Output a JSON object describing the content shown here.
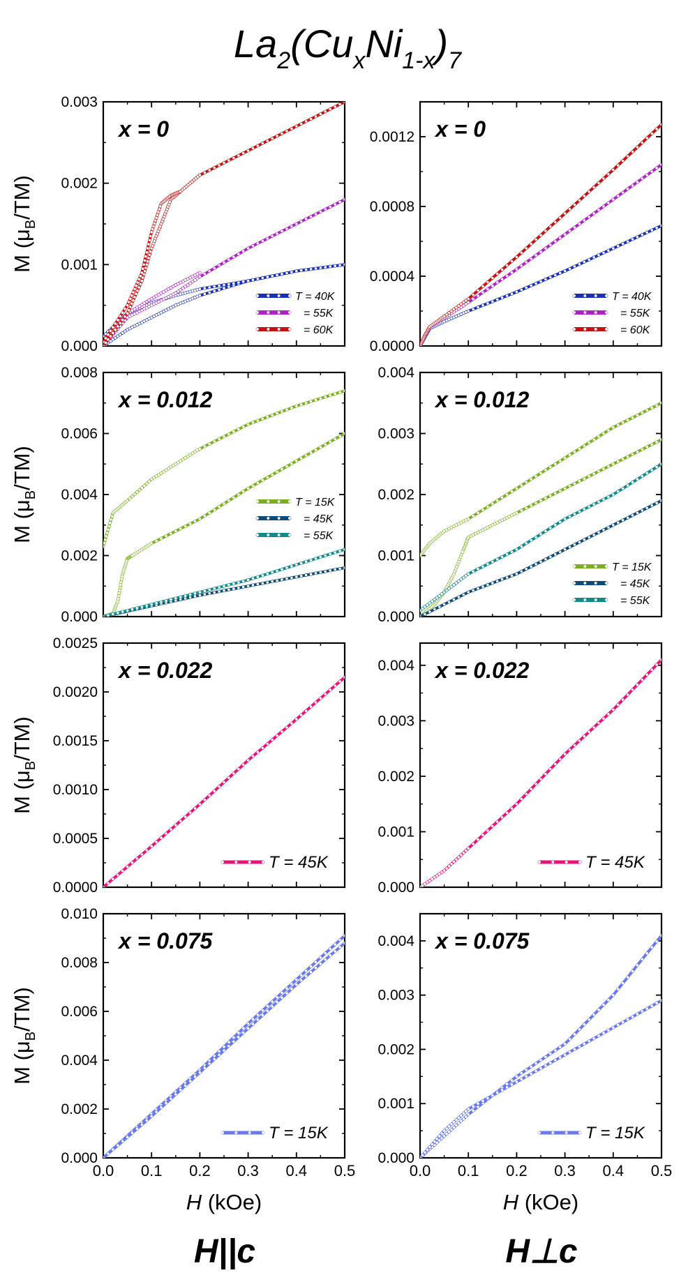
{
  "title": {
    "base": "La",
    "sub1": "2",
    "open": "(Cu",
    "sub2": "x",
    "mid": "Ni",
    "sub3": "1-x",
    "close": ")",
    "sub4": "7"
  },
  "y_label": {
    "pre": "M (μ",
    "sub": "B",
    "post": "/TM)"
  },
  "x_label": {
    "italic": "H",
    "unit": " (kOe)"
  },
  "column_labels": [
    "H||c",
    "H⊥c"
  ],
  "colors": {
    "blue": "#1830b8",
    "purple": "#b020c8",
    "red": "#c41212",
    "green": "#7ab020",
    "navy": "#0e4a7a",
    "teal": "#108a8a",
    "pink": "#e8137a",
    "periwinkle": "#6878ee"
  },
  "chart_data": [
    {
      "type": "line",
      "panel": "x0-par",
      "annotation": "x = 0",
      "xlim": [
        0,
        0.5
      ],
      "ylim": [
        0,
        0.003
      ],
      "xticks": [
        "0.0",
        "0.1",
        "0.2",
        "0.3",
        "0.4",
        "0.5"
      ],
      "yticks": [
        "0.000",
        "0.001",
        "0.002",
        "0.003"
      ],
      "legend_placement": "bottom-right",
      "series": [
        {
          "name": "T = 40K",
          "color": "#1830b8",
          "x": [
            0,
            0.05,
            0.1,
            0.15,
            0.2,
            0.3,
            0.4,
            0.5
          ],
          "y": [
            0,
            0.0002,
            0.00035,
            0.0005,
            0.00062,
            0.0008,
            0.00092,
            0.001
          ],
          "x2": [
            0,
            0.05,
            0.1,
            0.15,
            0.2,
            0.3,
            0.4,
            0.5
          ],
          "y2": [
            0.00012,
            0.0004,
            0.00053,
            0.00062,
            0.0007,
            0.0008,
            0.00092,
            0.001
          ]
        },
        {
          "name": "= 55K",
          "color": "#b020c8",
          "x": [
            0,
            0.05,
            0.1,
            0.15,
            0.2,
            0.3,
            0.4,
            0.5
          ],
          "y": [
            0,
            0.00035,
            0.0005,
            0.00065,
            0.00085,
            0.0012,
            0.0015,
            0.0018
          ],
          "x2": [
            0,
            0.05,
            0.1,
            0.15,
            0.2
          ],
          "y2": [
            5e-05,
            0.0004,
            0.00058,
            0.00075,
            0.0009
          ]
        },
        {
          "name": "= 60K",
          "color": "#c41212",
          "x": [
            0,
            0.05,
            0.08,
            0.1,
            0.12,
            0.14,
            0.16,
            0.2,
            0.3,
            0.4,
            0.5
          ],
          "y": [
            0,
            0.0004,
            0.0008,
            0.0012,
            0.0015,
            0.0018,
            0.0019,
            0.0021,
            0.0024,
            0.0027,
            0.003
          ],
          "x2": [
            0,
            0.05,
            0.08,
            0.1,
            0.12,
            0.14,
            0.16,
            0.2
          ],
          "y2": [
            5e-05,
            0.0005,
            0.0009,
            0.0014,
            0.00175,
            0.00185,
            0.0019,
            0.0021
          ]
        }
      ]
    },
    {
      "type": "line",
      "panel": "x0-perp",
      "annotation": "x = 0",
      "xlim": [
        0,
        0.5
      ],
      "ylim": [
        0,
        0.0014
      ],
      "xticks": [
        "0.0",
        "0.1",
        "0.2",
        "0.3",
        "0.4",
        "0.5"
      ],
      "yticks": [
        "0.0000",
        "0.0004",
        "0.0008",
        "0.0012"
      ],
      "ytick_values": [
        0,
        0.0004,
        0.0008,
        0.0012
      ],
      "legend_placement": "bottom-right",
      "series": [
        {
          "name": "T = 40K",
          "color": "#1830b8",
          "x": [
            0,
            0.01,
            0.02,
            0.05,
            0.1,
            0.2,
            0.3,
            0.4,
            0.5
          ],
          "y": [
            0,
            5e-05,
            0.0001,
            0.00014,
            0.0002,
            0.00031,
            0.00043,
            0.00056,
            0.00069
          ]
        },
        {
          "name": "= 55K",
          "color": "#b020c8",
          "x": [
            0,
            0.01,
            0.02,
            0.05,
            0.1,
            0.2,
            0.3,
            0.4,
            0.5
          ],
          "y": [
            0,
            6e-05,
            0.00011,
            0.00016,
            0.00025,
            0.00044,
            0.00064,
            0.00084,
            0.00104
          ]
        },
        {
          "name": "= 60K",
          "color": "#c41212",
          "x": [
            0,
            0.01,
            0.02,
            0.05,
            0.1,
            0.2,
            0.3,
            0.4,
            0.5
          ],
          "y": [
            0,
            6e-05,
            0.00011,
            0.00017,
            0.00027,
            0.00051,
            0.00076,
            0.00101,
            0.00127
          ]
        }
      ]
    },
    {
      "type": "line",
      "panel": "x0012-par",
      "annotation": "x = 0.012",
      "xlim": [
        0,
        0.5
      ],
      "ylim": [
        0,
        0.008
      ],
      "xticks": [
        "0.0",
        "0.1",
        "0.2",
        "0.3",
        "0.4",
        "0.5"
      ],
      "yticks": [
        "0.000",
        "0.002",
        "0.004",
        "0.006",
        "0.008"
      ],
      "legend_placement": "center-right",
      "series": [
        {
          "name": "T = 15K",
          "color": "#7ab020",
          "x": [
            0,
            0.02,
            0.05,
            0.1,
            0.15,
            0.2,
            0.3,
            0.4,
            0.5
          ],
          "y": [
            0.0023,
            0.0034,
            0.0038,
            0.0045,
            0.005,
            0.0055,
            0.0063,
            0.0069,
            0.0074
          ],
          "x2": [
            0,
            0.02,
            0.03,
            0.04,
            0.05,
            0.06,
            0.1,
            0.2,
            0.3,
            0.4,
            0.5
          ],
          "y2": [
            0,
            0.0001,
            0.0005,
            0.0014,
            0.0019,
            0.002,
            0.0024,
            0.0032,
            0.0042,
            0.0051,
            0.006
          ]
        },
        {
          "name": "= 45K",
          "color": "#0e4a7a",
          "x": [
            0,
            0.1,
            0.2,
            0.3,
            0.4,
            0.5
          ],
          "y": [
            0,
            0.00035,
            0.0007,
            0.001,
            0.0013,
            0.0016
          ]
        },
        {
          "name": "= 55K",
          "color": "#108a8a",
          "x": [
            0,
            0.1,
            0.2,
            0.3,
            0.4,
            0.5
          ],
          "y": [
            0,
            0.0004,
            0.0008,
            0.0012,
            0.0017,
            0.0022
          ]
        }
      ]
    },
    {
      "type": "line",
      "panel": "x0012-perp",
      "annotation": "x = 0.012",
      "xlim": [
        0,
        0.5
      ],
      "ylim": [
        0,
        0.004
      ],
      "xticks": [
        "0.0",
        "0.1",
        "0.2",
        "0.3",
        "0.4",
        "0.5"
      ],
      "yticks": [
        "0.000",
        "0.001",
        "0.002",
        "0.003",
        "0.004"
      ],
      "legend_placement": "bottom-right",
      "series": [
        {
          "name": "T = 15K",
          "color": "#7ab020",
          "x": [
            0,
            0.02,
            0.05,
            0.1,
            0.2,
            0.3,
            0.4,
            0.5
          ],
          "y": [
            0.001,
            0.0012,
            0.0014,
            0.0016,
            0.0021,
            0.0026,
            0.0031,
            0.0035
          ],
          "x2": [
            0,
            0.03,
            0.05,
            0.07,
            0.09,
            0.1,
            0.15,
            0.2,
            0.3,
            0.4,
            0.5
          ],
          "y2": [
            0,
            0.0002,
            0.0004,
            0.0007,
            0.0011,
            0.0013,
            0.0015,
            0.0017,
            0.0021,
            0.0025,
            0.0029
          ]
        },
        {
          "name": "= 45K",
          "color": "#0e4a7a",
          "x": [
            0,
            0.1,
            0.2,
            0.3,
            0.4,
            0.5
          ],
          "y": [
            0,
            0.0004,
            0.0007,
            0.0011,
            0.0015,
            0.0019
          ]
        },
        {
          "name": "= 55K",
          "color": "#108a8a",
          "x": [
            0,
            0.05,
            0.1,
            0.2,
            0.3,
            0.4,
            0.5
          ],
          "y": [
            0.0001,
            0.0004,
            0.0007,
            0.0011,
            0.0016,
            0.002,
            0.0025
          ]
        }
      ]
    },
    {
      "type": "line",
      "panel": "x0022-par",
      "annotation": "x = 0.022",
      "xlim": [
        0,
        0.5
      ],
      "ylim": [
        0,
        0.0025
      ],
      "xticks": [
        "0.0",
        "0.1",
        "0.2",
        "0.3",
        "0.4",
        "0.5"
      ],
      "yticks": [
        "0.0000",
        "0.0005",
        "0.0010",
        "0.0015",
        "0.0020",
        "0.0025"
      ],
      "legend_placement": "bottom-right",
      "series": [
        {
          "name": "T = 45K",
          "color": "#e8137a",
          "x": [
            0,
            0.1,
            0.2,
            0.3,
            0.4,
            0.5
          ],
          "y": [
            0,
            0.00042,
            0.00085,
            0.0013,
            0.00172,
            0.00215
          ]
        }
      ]
    },
    {
      "type": "line",
      "panel": "x0022-perp",
      "annotation": "x = 0.022",
      "xlim": [
        0,
        0.5
      ],
      "ylim": [
        0,
        0.0044
      ],
      "xticks": [
        "0.0",
        "0.1",
        "0.2",
        "0.3",
        "0.4",
        "0.5"
      ],
      "yticks": [
        "0.000",
        "0.001",
        "0.002",
        "0.003",
        "0.004"
      ],
      "ytick_values": [
        0,
        0.001,
        0.002,
        0.003,
        0.004
      ],
      "legend_placement": "bottom-right",
      "series": [
        {
          "name": "T = 45K",
          "color": "#e8137a",
          "x": [
            0,
            0.05,
            0.1,
            0.2,
            0.3,
            0.4,
            0.5
          ],
          "y": [
            0,
            0.0003,
            0.0007,
            0.0015,
            0.0024,
            0.0032,
            0.0041
          ]
        }
      ]
    },
    {
      "type": "line",
      "panel": "x0075-par",
      "annotation": "x = 0.075",
      "xlim": [
        0,
        0.5
      ],
      "ylim": [
        0,
        0.01
      ],
      "xticks": [
        "0.0",
        "0.1",
        "0.2",
        "0.3",
        "0.4",
        "0.5"
      ],
      "yticks": [
        "0.000",
        "0.002",
        "0.004",
        "0.006",
        "0.008",
        "0.010"
      ],
      "legend_placement": "bottom-right",
      "series": [
        {
          "name": "T = 15K",
          "color": "#6878ee",
          "x": [
            0,
            0.1,
            0.2,
            0.3,
            0.4,
            0.5
          ],
          "y": [
            0,
            0.0018,
            0.0036,
            0.0055,
            0.0073,
            0.0091
          ],
          "x2": [
            0,
            0.1,
            0.2,
            0.3,
            0.4,
            0.5
          ],
          "y2": [
            0,
            0.0017,
            0.0035,
            0.0053,
            0.0071,
            0.0088
          ]
        }
      ]
    },
    {
      "type": "line",
      "panel": "x0075-perp",
      "annotation": "x = 0.075",
      "xlim": [
        0,
        0.5
      ],
      "ylim": [
        0,
        0.0045
      ],
      "xticks": [
        "0.0",
        "0.1",
        "0.2",
        "0.3",
        "0.4",
        "0.5"
      ],
      "yticks": [
        "0.000",
        "0.001",
        "0.002",
        "0.003",
        "0.004"
      ],
      "ytick_values": [
        0,
        0.001,
        0.002,
        0.003,
        0.004
      ],
      "legend_placement": "bottom-right",
      "series": [
        {
          "name": "T = 15K",
          "color": "#6878ee",
          "x": [
            0,
            0.05,
            0.1,
            0.2,
            0.3,
            0.4,
            0.5
          ],
          "y": [
            0,
            0.0004,
            0.0008,
            0.0015,
            0.0021,
            0.003,
            0.0041
          ],
          "x2": [
            0,
            0.05,
            0.1,
            0.2,
            0.3,
            0.4,
            0.5
          ],
          "y2": [
            0,
            0.0005,
            0.0009,
            0.0014,
            0.0019,
            0.0024,
            0.0029
          ]
        }
      ]
    }
  ]
}
